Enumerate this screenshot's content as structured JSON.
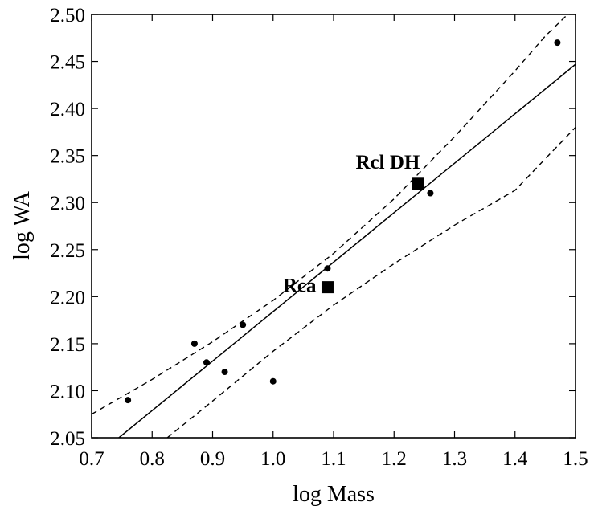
{
  "chart_data": {
    "type": "scatter",
    "xlabel": "log Mass",
    "ylabel": "log WA",
    "xlim": [
      0.7,
      1.5
    ],
    "ylim": [
      2.05,
      2.5
    ],
    "xticks": [
      "0.7",
      "0.8",
      "0.9",
      "1.0",
      "1.1",
      "1.2",
      "1.3",
      "1.4",
      "1.5"
    ],
    "yticks": [
      "2.05",
      "2.10",
      "2.15",
      "2.20",
      "2.25",
      "2.30",
      "2.35",
      "2.40",
      "2.45",
      "2.50"
    ],
    "grid": false,
    "series": [
      {
        "marker": "dot",
        "points": [
          {
            "x": 0.76,
            "y": 2.09
          },
          {
            "x": 0.87,
            "y": 2.15
          },
          {
            "x": 0.89,
            "y": 2.13
          },
          {
            "x": 0.92,
            "y": 2.12
          },
          {
            "x": 0.95,
            "y": 2.17
          },
          {
            "x": 1.0,
            "y": 2.11
          },
          {
            "x": 1.09,
            "y": 2.23
          },
          {
            "x": 1.26,
            "y": 2.31
          },
          {
            "x": 1.47,
            "y": 2.47
          }
        ]
      },
      {
        "marker": "square",
        "points": [
          {
            "x": 1.09,
            "y": 2.21,
            "label": "Rca"
          },
          {
            "x": 1.24,
            "y": 2.32,
            "label": "Rcl DH"
          }
        ]
      }
    ],
    "fit_line": {
      "style": "solid",
      "points": [
        [
          0.745,
          2.05
        ],
        [
          1.5,
          2.447
        ]
      ]
    },
    "confidence_bands": [
      {
        "style": "dashed",
        "points": [
          [
            0.7,
            2.075
          ],
          [
            0.8,
            2.112
          ],
          [
            0.9,
            2.152
          ],
          [
            1.0,
            2.196
          ],
          [
            1.1,
            2.246
          ],
          [
            1.2,
            2.304
          ],
          [
            1.3,
            2.37
          ],
          [
            1.4,
            2.44
          ],
          [
            1.45,
            2.477
          ],
          [
            1.487,
            2.5
          ]
        ]
      },
      {
        "style": "dashed",
        "points": [
          [
            0.825,
            2.05
          ],
          [
            0.9,
            2.089
          ],
          [
            1.0,
            2.142
          ],
          [
            1.1,
            2.191
          ],
          [
            1.2,
            2.235
          ],
          [
            1.3,
            2.276
          ],
          [
            1.4,
            2.313
          ],
          [
            1.5,
            2.38
          ]
        ]
      }
    ]
  }
}
